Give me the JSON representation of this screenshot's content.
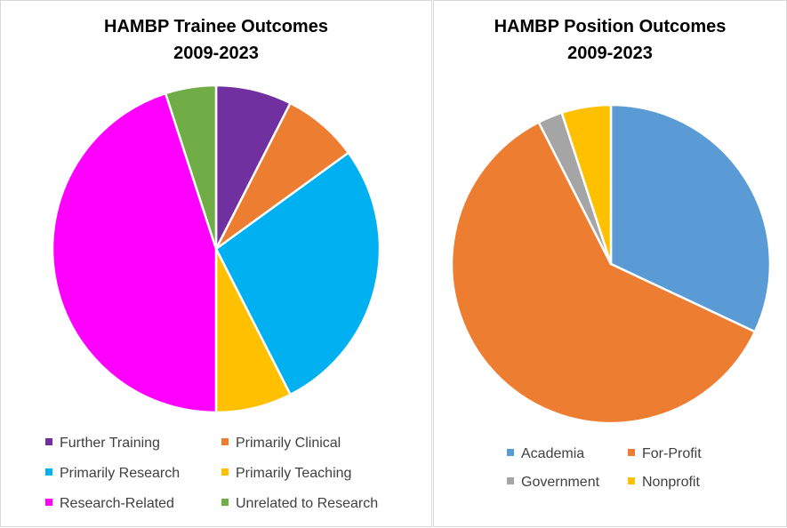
{
  "chart_data": [
    {
      "type": "pie",
      "title": [
        "HAMBP Trainee Outcomes",
        "2009-2023"
      ],
      "slices": [
        {
          "label": "Further Training",
          "value": 7.5,
          "color": "#7030a0"
        },
        {
          "label": "Primarily Clinical",
          "value": 7.5,
          "color": "#ed7d31"
        },
        {
          "label": "Primarily Research",
          "value": 27.5,
          "color": "#00b0f0"
        },
        {
          "label": "Primarily Teaching",
          "value": 7.5,
          "color": "#ffc000"
        },
        {
          "label": "Research-Related",
          "value": 45,
          "color": "#ff00ff"
        },
        {
          "label": "Unrelated to Research",
          "value": 5,
          "color": "#70ad47"
        }
      ],
      "legend_position": "bottom"
    },
    {
      "type": "pie",
      "title": [
        "HAMBP Position Outcomes",
        "2009-2023"
      ],
      "slices": [
        {
          "label": "Academia",
          "value": 32,
          "color": "#5b9bd5"
        },
        {
          "label": "For-Profit",
          "value": 60.5,
          "color": "#ed7d31"
        },
        {
          "label": "Government",
          "value": 2.5,
          "color": "#a5a5a5"
        },
        {
          "label": "Nonprofit",
          "value": 5,
          "color": "#ffc000"
        }
      ],
      "legend_position": "bottom"
    }
  ]
}
